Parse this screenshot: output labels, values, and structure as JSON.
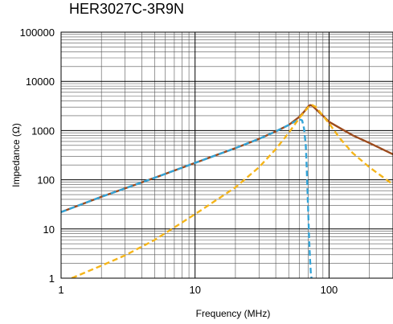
{
  "chart_data": {
    "type": "line",
    "title": "HER3027C-3R9N",
    "xlabel": "Frequency (MHz)",
    "ylabel": "Impedance (Ω)",
    "xscale": "log",
    "yscale": "log",
    "xlim": [
      1,
      300
    ],
    "ylim": [
      1,
      100000
    ],
    "x_tick_labels": [
      "1",
      "10",
      "100"
    ],
    "y_tick_labels": [
      "1",
      "10",
      "100",
      "1000",
      "10000",
      "100000"
    ],
    "grid": true,
    "legend": "none",
    "series": [
      {
        "color": "#9c4a1c",
        "dash": "solid",
        "x": [
          1,
          2,
          5,
          10,
          20,
          30,
          40,
          50,
          60,
          65,
          70,
          72,
          75,
          80,
          90,
          100,
          150,
          200,
          300
        ],
        "y": [
          22,
          45,
          110,
          220,
          440,
          680,
          960,
          1300,
          1900,
          2400,
          3100,
          3300,
          3200,
          2700,
          2000,
          1500,
          800,
          560,
          330
        ]
      },
      {
        "color": "#33a4d8",
        "dash": "dashed",
        "x": [
          1,
          2,
          5,
          10,
          20,
          30,
          40,
          50,
          55,
          60,
          63,
          65,
          67,
          68,
          69,
          70,
          71,
          72,
          73,
          74
        ],
        "y": [
          22,
          45,
          110,
          220,
          440,
          680,
          960,
          1300,
          1500,
          1700,
          1600,
          1100,
          500,
          200,
          60,
          20,
          6,
          2.5,
          1.3,
          1
        ]
      },
      {
        "color": "#f5b51a",
        "dash": "dashed",
        "x": [
          1.2,
          2,
          3,
          5,
          10,
          20,
          30,
          40,
          50,
          60,
          70,
          75,
          80,
          90,
          100,
          120,
          150,
          200,
          300
        ],
        "y": [
          1,
          1.8,
          2.9,
          6,
          20,
          70,
          180,
          420,
          900,
          1800,
          3000,
          3300,
          3000,
          2000,
          1400,
          700,
          350,
          180,
          80
        ]
      }
    ]
  }
}
